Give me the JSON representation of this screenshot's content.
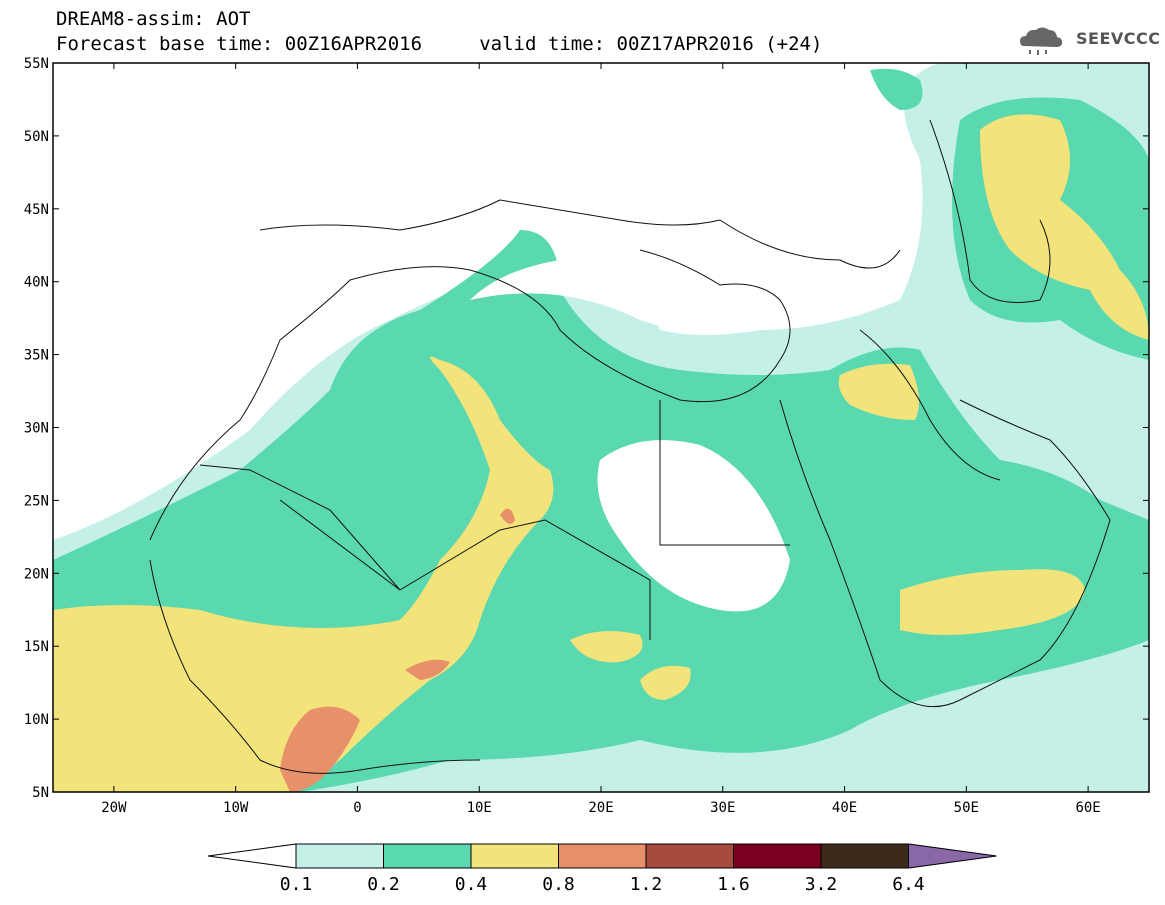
{
  "header": {
    "title_line1": "DREAM8-assim: AOT",
    "title_line2": "Forecast base time: 00Z16APR2016     valid time: 00Z17APR2016 (+24)",
    "logo_text": "SEEVCCC",
    "logo_icon": "cloud-icon"
  },
  "map": {
    "lon_range": [
      -25,
      65
    ],
    "lat_range": [
      5,
      55
    ],
    "lat_labels": [
      "55N",
      "50N",
      "45N",
      "40N",
      "35N",
      "30N",
      "25N",
      "20N",
      "15N",
      "10N",
      "5N"
    ],
    "lat_values": [
      55,
      50,
      45,
      40,
      35,
      30,
      25,
      20,
      15,
      10,
      5
    ],
    "lon_labels": [
      "20W",
      "10W",
      "0",
      "10E",
      "20E",
      "30E",
      "40E",
      "50E",
      "60E"
    ],
    "lon_values": [
      -20,
      -10,
      0,
      10,
      20,
      30,
      40,
      50,
      60
    ]
  },
  "colorbar": {
    "labels": [
      "0.1",
      "0.2",
      "0.4",
      "0.8",
      "1.2",
      "1.6",
      "3.2",
      "6.4"
    ],
    "colors": {
      "low_arrow": "#ffffff",
      "c1": "#c4f0e8",
      "c2": "#5ad8b0",
      "c3": "#f2e37a",
      "c4": "#e8906a",
      "c5": "#a84a3e",
      "c6": "#7a0020",
      "c7": "#3e2a18",
      "high_arrow": "#8a68a8"
    }
  }
}
